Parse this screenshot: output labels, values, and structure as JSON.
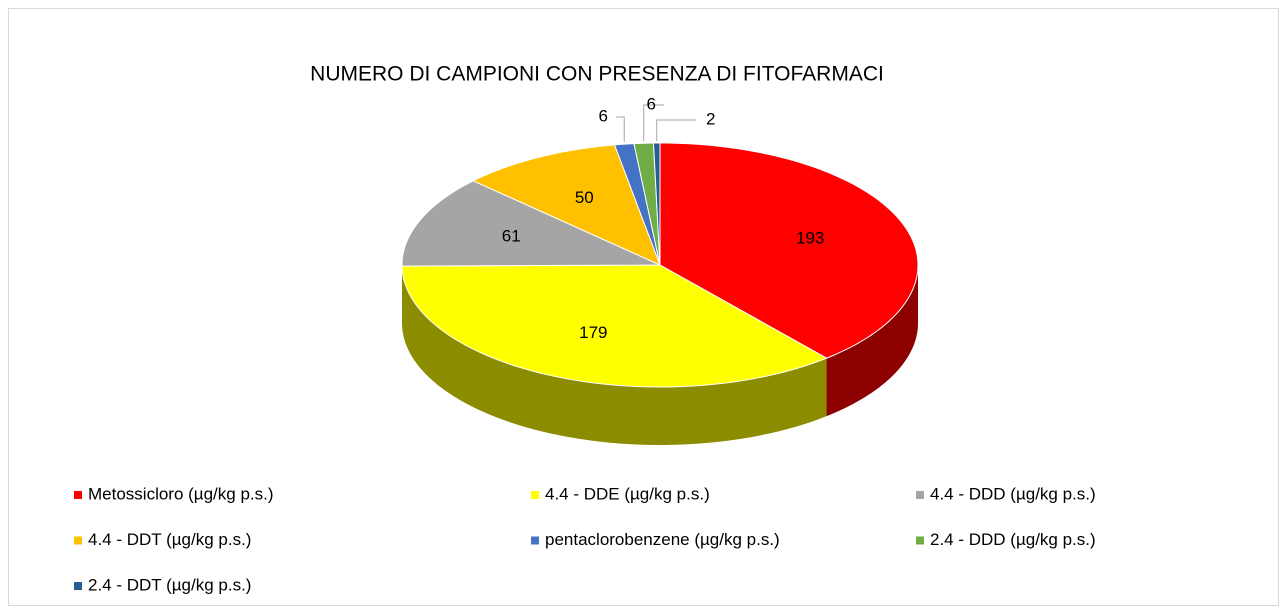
{
  "chart_data": {
    "type": "pie",
    "title": "NUMERO DI CAMPIONI CON PRESENZA DI FITOFARMACI",
    "categories": [
      "Metossicloro  (µg/kg p.s.)",
      "4.4 - DDE   (µg/kg p.s.)",
      "4.4 - DDD   (µg/kg p.s.)",
      "4.4 - DDT   (µg/kg p.s.)",
      "pentaclorobenzene (µg/kg p.s.)",
      "2.4 - DDD  (µg/kg p.s.)",
      "2.4 - DDT   (µg/kg p.s.)"
    ],
    "values": [
      193,
      179,
      61,
      50,
      6,
      6,
      2
    ],
    "colors": [
      "#ff0000",
      "#ffff00",
      "#a5a5a5",
      "#ffc000",
      "#4472c4",
      "#70ad47",
      "#255e91"
    ],
    "legend": "bottom"
  }
}
